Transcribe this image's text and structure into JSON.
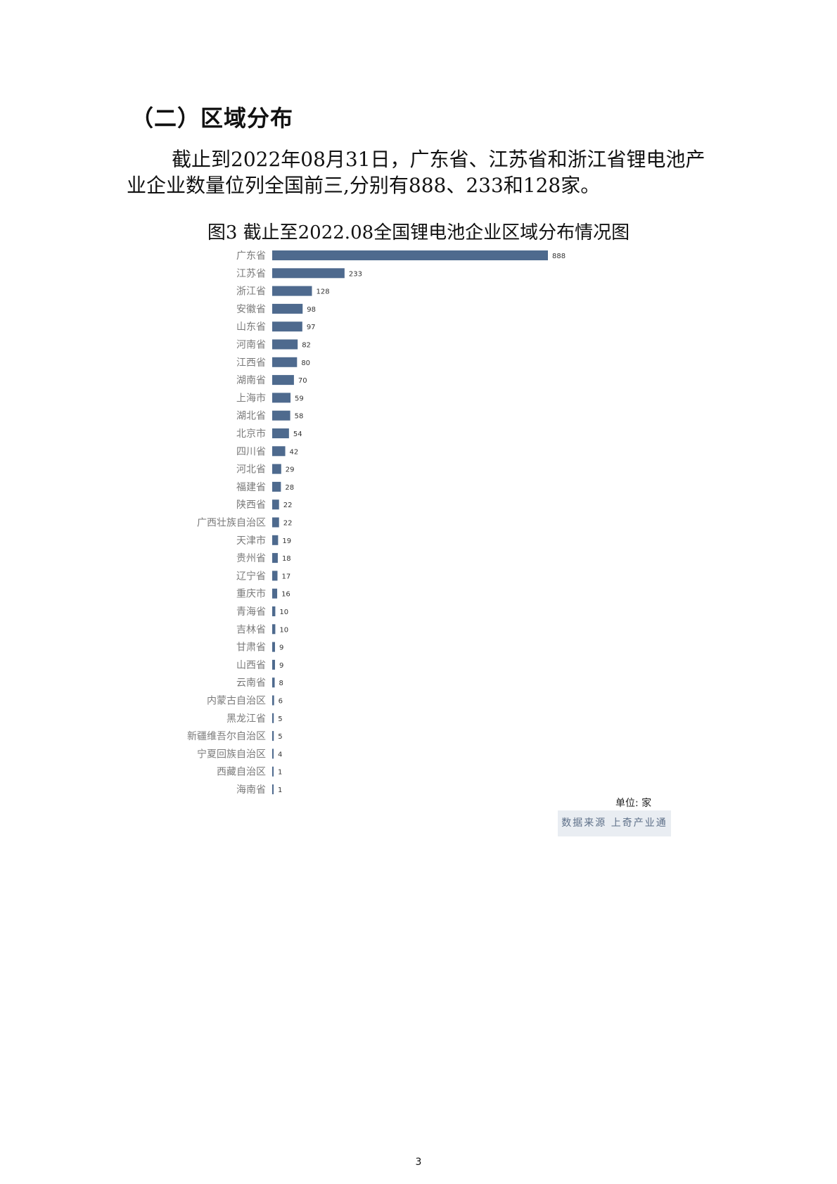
{
  "section": {
    "heading": "（二）区域分布"
  },
  "paragraph": "截止到2022年08月31日，广东省、江苏省和浙江省锂电池产业企业数量位列全国前三,分别有888、233和128家。",
  "chart_data": {
    "type": "bar",
    "orientation": "horizontal",
    "title": "图3 截止至2022.08全国锂电池企业区域分布情况图",
    "categories": [
      "广东省",
      "江苏省",
      "浙江省",
      "安徽省",
      "山东省",
      "河南省",
      "江西省",
      "湖南省",
      "上海市",
      "湖北省",
      "北京市",
      "四川省",
      "河北省",
      "福建省",
      "陕西省",
      "广西壮族自治区",
      "天津市",
      "贵州省",
      "辽宁省",
      "重庆市",
      "青海省",
      "吉林省",
      "甘肃省",
      "山西省",
      "云南省",
      "内蒙古自治区",
      "黑龙江省",
      "新疆维吾尔自治区",
      "宁夏回族自治区",
      "西藏自治区",
      "海南省"
    ],
    "values": [
      888,
      233,
      128,
      98,
      97,
      82,
      80,
      70,
      59,
      58,
      54,
      42,
      29,
      28,
      22,
      22,
      19,
      18,
      17,
      16,
      10,
      10,
      9,
      9,
      8,
      6,
      5,
      5,
      4,
      1,
      1
    ],
    "unit_label": "单位: 家",
    "source_label": "数据来源 上奇产业通",
    "bar_color": "#4e6a8e",
    "xlim": [
      0,
      888
    ],
    "grid": false,
    "data_labels": true
  },
  "footer": {
    "page_number": "3"
  }
}
